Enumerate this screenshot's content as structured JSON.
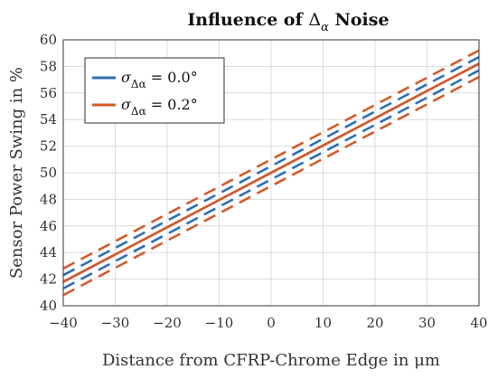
{
  "chart_data": {
    "type": "line",
    "title": "Influence of Δ_α Noise",
    "title_parts": {
      "prefix": "Influence of ",
      "symbol": "Δ",
      "subscript": "α",
      "suffix": " Noise"
    },
    "xlabel": "Distance from CFRP-Chrome Edge in μm",
    "ylabel": "Sensor Power Swing in %",
    "xlim": [
      -40,
      40
    ],
    "ylim": [
      40,
      60
    ],
    "xticks": [
      -40,
      -30,
      -20,
      -10,
      0,
      10,
      20,
      30,
      40
    ],
    "xtick_labels": [
      "−40",
      "−30",
      "−20",
      "−10",
      "0",
      "10",
      "20",
      "30",
      "40"
    ],
    "yticks": [
      40,
      42,
      44,
      46,
      48,
      50,
      52,
      54,
      56,
      58,
      60
    ],
    "ytick_labels": [
      "40",
      "42",
      "44",
      "46",
      "48",
      "50",
      "52",
      "54",
      "56",
      "58",
      "60"
    ],
    "grid": true,
    "legend_position": "top-left",
    "series": [
      {
        "name": "σ_Δα = 0.0°",
        "legend": {
          "sigma": "σ",
          "subscript": "Δα",
          "value": " = 0.0°"
        },
        "color": "#2f6fb5",
        "mean": {
          "x": [
            -40,
            40
          ],
          "y": [
            41.8,
            58.2
          ]
        },
        "upper": {
          "x": [
            -40,
            40
          ],
          "y": [
            42.3,
            58.7
          ]
        },
        "lower": {
          "x": [
            -40,
            40
          ],
          "y": [
            41.3,
            57.7
          ]
        }
      },
      {
        "name": "σ_Δα = 0.2°",
        "legend": {
          "sigma": "σ",
          "subscript": "Δα",
          "value": " = 0.2°"
        },
        "color": "#d45a2a",
        "mean": {
          "x": [
            -40,
            40
          ],
          "y": [
            41.8,
            58.2
          ]
        },
        "upper": {
          "x": [
            -40,
            40
          ],
          "y": [
            42.8,
            59.2
          ]
        },
        "lower": {
          "x": [
            -40,
            40
          ],
          "y": [
            40.8,
            57.2
          ]
        }
      }
    ]
  }
}
